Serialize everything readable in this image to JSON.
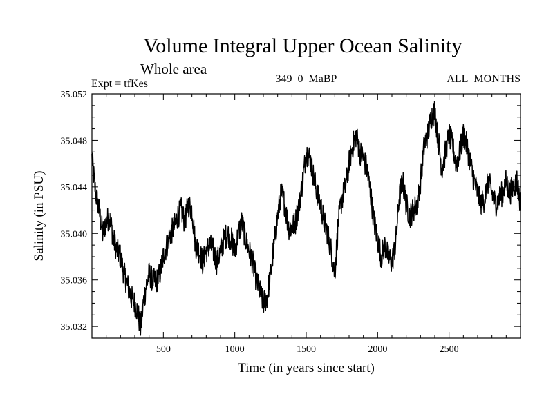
{
  "header": {
    "title": "Volume Integral Upper Ocean Salinity",
    "subtitle": "Whole area",
    "experiment": "Expt = tfKes",
    "run": "349_0_MaBP",
    "months": "ALL_MONTHS"
  },
  "chart_data": {
    "type": "line",
    "title": "Volume Integral Upper Ocean Salinity",
    "xlabel": "Time (in years since start)",
    "ylabel": "Salinity (in PSU)",
    "xlim": [
      0,
      3000
    ],
    "ylim": [
      35.031,
      35.052
    ],
    "xticks": [
      500,
      1000,
      1500,
      2000,
      2500
    ],
    "xtick_labels": [
      "500",
      "1000",
      "1500",
      "2000",
      "2500"
    ],
    "yticks": [
      35.032,
      35.036,
      35.04,
      35.044,
      35.048,
      35.052
    ],
    "ytick_labels": [
      "35.032",
      "35.036",
      "35.040",
      "35.044",
      "35.048",
      "35.052"
    ],
    "grid": false,
    "series": [
      {
        "x": [
          0,
          25,
          50,
          75,
          100,
          125,
          150,
          175,
          200,
          225,
          250,
          275,
          300,
          325,
          340,
          360,
          380,
          400,
          425,
          450,
          475,
          500,
          525,
          550,
          575,
          600,
          625,
          650,
          675,
          700,
          725,
          750,
          775,
          800,
          825,
          850,
          875,
          900,
          925,
          950,
          975,
          1000,
          1025,
          1050,
          1075,
          1100,
          1125,
          1150,
          1175,
          1200,
          1225,
          1250,
          1275,
          1300,
          1325,
          1350,
          1375,
          1400,
          1425,
          1450,
          1475,
          1500,
          1525,
          1550,
          1575,
          1600,
          1625,
          1650,
          1675,
          1700,
          1725,
          1750,
          1775,
          1800,
          1825,
          1850,
          1875,
          1900,
          1925,
          1950,
          1975,
          2000,
          2025,
          2050,
          2075,
          2100,
          2125,
          2150,
          2175,
          2200,
          2225,
          2250,
          2275,
          2300,
          2325,
          2350,
          2375,
          2400,
          2425,
          2450,
          2475,
          2500,
          2525,
          2550,
          2575,
          2600,
          2625,
          2650,
          2675,
          2700,
          2725,
          2750,
          2775,
          2800,
          2825,
          2850,
          2875,
          2900,
          2925,
          2950,
          2975,
          3000
        ],
        "y": [
          35.0465,
          35.0435,
          35.042,
          35.04,
          35.041,
          35.0415,
          35.0395,
          35.0385,
          35.038,
          35.0365,
          35.0355,
          35.0345,
          35.034,
          35.033,
          35.0318,
          35.034,
          35.0355,
          35.0365,
          35.036,
          35.0358,
          35.0365,
          35.038,
          35.039,
          35.04,
          35.0405,
          35.0415,
          35.042,
          35.041,
          35.0425,
          35.042,
          35.039,
          35.0385,
          35.0375,
          35.0385,
          35.039,
          35.0385,
          35.0375,
          35.0385,
          35.0395,
          35.04,
          35.0395,
          35.0385,
          35.04,
          35.041,
          35.0395,
          35.0385,
          35.0375,
          35.036,
          35.035,
          35.034,
          35.0345,
          35.0365,
          35.039,
          35.0415,
          35.0435,
          35.0425,
          35.0405,
          35.0405,
          35.041,
          35.0425,
          35.0445,
          35.047,
          35.0465,
          35.045,
          35.0435,
          35.0425,
          35.041,
          35.04,
          35.0385,
          35.0365,
          35.041,
          35.043,
          35.044,
          35.046,
          35.0475,
          35.0485,
          35.047,
          35.0465,
          35.0455,
          35.0435,
          35.041,
          35.0395,
          35.038,
          35.039,
          35.038,
          35.0375,
          35.039,
          35.043,
          35.0445,
          35.0425,
          35.0415,
          35.042,
          35.0425,
          35.0445,
          35.0475,
          35.0485,
          35.05,
          35.0505,
          35.048,
          35.0455,
          35.047,
          35.0485,
          35.0475,
          35.046,
          35.047,
          35.0485,
          35.0475,
          35.046,
          35.0445,
          35.0435,
          35.0425,
          35.043,
          35.0445,
          35.0435,
          35.0425,
          35.043,
          35.0435,
          35.0445,
          35.0435,
          35.044,
          35.0445,
          35.0425
        ]
      }
    ]
  }
}
